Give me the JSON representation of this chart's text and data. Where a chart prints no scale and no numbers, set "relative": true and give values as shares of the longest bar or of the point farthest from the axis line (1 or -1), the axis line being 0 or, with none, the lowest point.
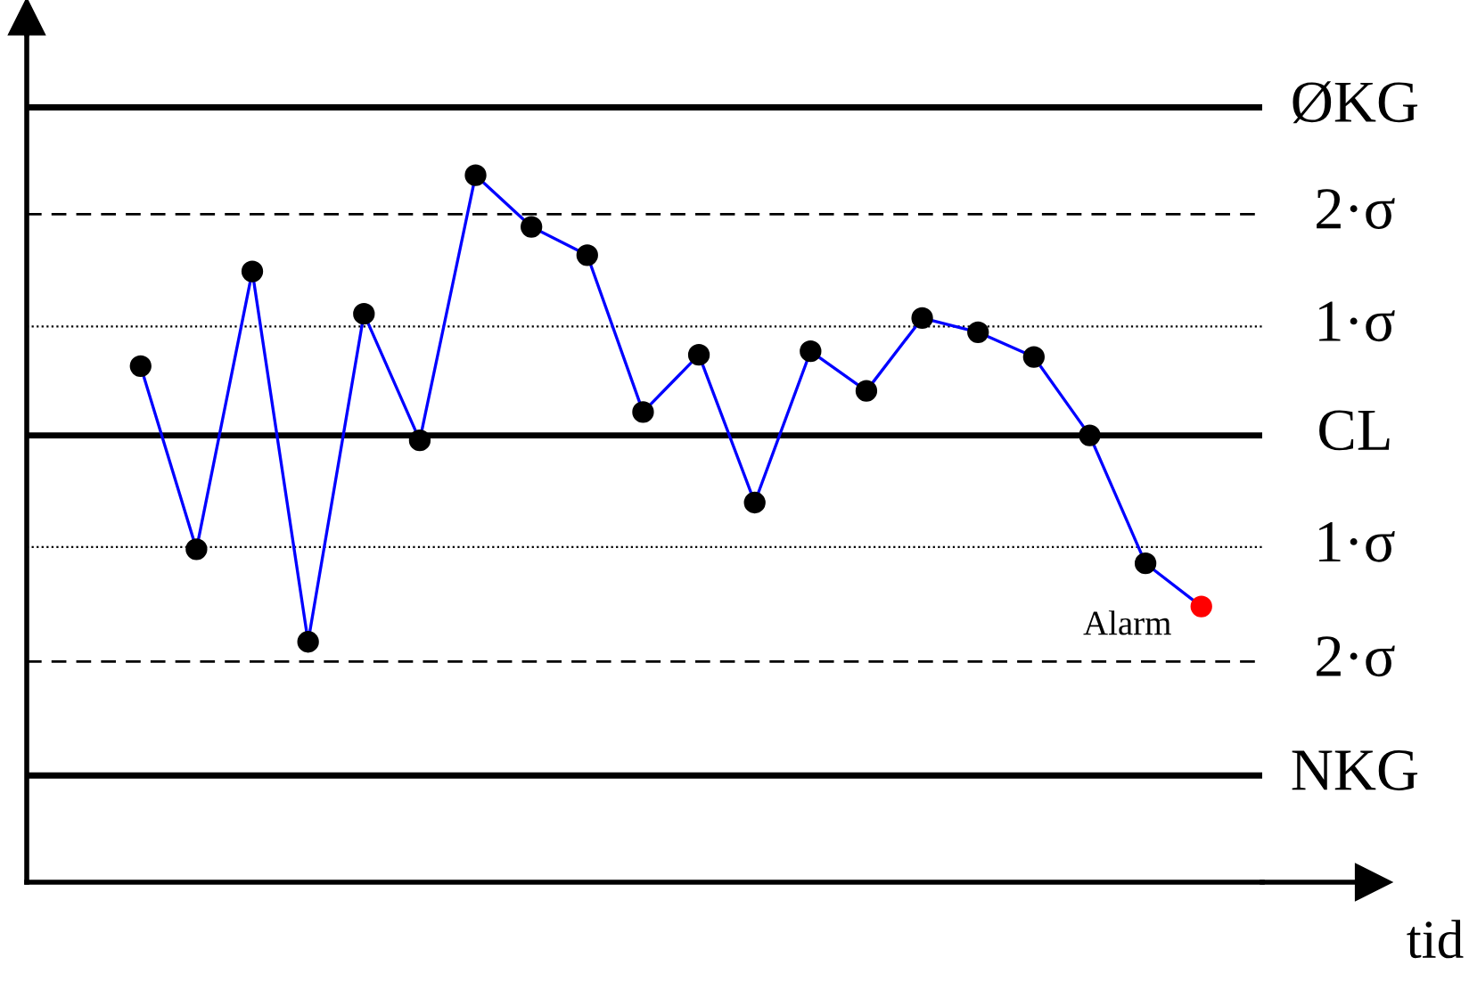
{
  "chart_data": {
    "type": "line",
    "relative": true,
    "xlabel": "tid",
    "categories": [
      null,
      null,
      null,
      null,
      null,
      null,
      null,
      null,
      null,
      null,
      null,
      null,
      null,
      null,
      null,
      null,
      null,
      null,
      null,
      null
    ],
    "series": [
      {
        "color": "#0000ff",
        "marker": "circle",
        "colors": [
          "#000000",
          "#000000",
          "#000000",
          "#000000",
          "#000000",
          "#000000",
          "#000000",
          "#000000",
          "#000000",
          "#000000",
          "#000000",
          "#000000",
          "#000000",
          "#000000",
          "#000000",
          "#000000",
          "#000000",
          "#000000",
          "#000000",
          "#ff0000"
        ],
        "values": [
          0.73,
          0.471,
          0.864,
          0.34,
          0.804,
          0.625,
          1.0,
          0.927,
          0.887,
          0.665,
          0.746,
          0.537,
          0.751,
          0.695,
          0.798,
          0.778,
          0.743,
          0.632,
          0.451,
          0.39
        ]
      }
    ],
    "ref_lines": [
      {
        "axis": "y",
        "value": 1.096,
        "label": "ØKG",
        "color": "#000000",
        "line_style": "solid"
      },
      {
        "axis": "y",
        "value": 0.945,
        "label": "2·σ",
        "color": "#000000",
        "line_style": "dashed"
      },
      {
        "axis": "y",
        "value": 0.786,
        "label": "1·σ",
        "color": "#000000",
        "line_style": "dotted"
      },
      {
        "axis": "y",
        "value": 0.632,
        "label": "CL",
        "color": "#000000",
        "line_style": "solid"
      },
      {
        "axis": "y",
        "value": 0.474,
        "label": "1·σ",
        "color": "#000000",
        "line_style": "dotted"
      },
      {
        "axis": "y",
        "value": 0.312,
        "label": "2·σ",
        "color": "#000000",
        "line_style": "dashed"
      },
      {
        "axis": "y",
        "value": 0.151,
        "label": "NKG",
        "color": "#000000",
        "line_style": "solid"
      }
    ],
    "annotations": [
      "Alarm"
    ],
    "grid": false
  }
}
